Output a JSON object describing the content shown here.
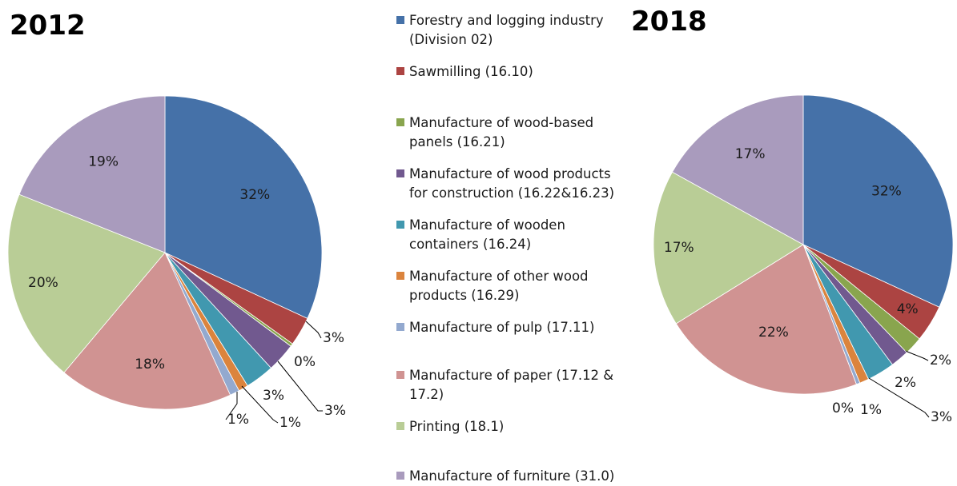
{
  "chart_data": [
    {
      "type": "pie",
      "title": "2012",
      "categories": [
        "Forestry and logging industry (Division 02)",
        "Sawmilling (16.10)",
        "Manufacture of wood-based panels (16.21)",
        "Manufacture of wood products for construction (16.22&16.23)",
        "Manufacture of wooden containers (16.24)",
        "Manufacture of other wood products (16.29)",
        "Manufacture of pulp (17.11)",
        "Manufacture of paper (17.12 & 17.2)",
        "Printing (18.1)",
        "Manufacture of furniture (31.0)"
      ],
      "values": [
        32,
        3,
        0.3,
        3,
        3,
        1,
        1,
        18,
        20,
        19
      ],
      "labels": [
        "32%",
        "3%",
        "0%",
        "3%",
        "3%",
        "1%",
        "1%",
        "18%",
        "20%",
        "19%"
      ]
    },
    {
      "type": "pie",
      "title": "2018",
      "categories": [
        "Forestry and logging industry (Division 02)",
        "Sawmilling (16.10)",
        "Manufacture of wood-based panels (16.21)",
        "Manufacture of wood products for construction (16.22&16.23)",
        "Manufacture of wooden containers (16.24)",
        "Manufacture of other wood products (16.29)",
        "Manufacture of pulp (17.11)",
        "Manufacture of paper (17.12 & 17.2)",
        "Printing (18.1)",
        "Manufacture of furniture (31.0)"
      ],
      "values": [
        32,
        4,
        2,
        2,
        3,
        1,
        0.4,
        22,
        17,
        17
      ],
      "labels": [
        "32%",
        "4%",
        "2%",
        "2%",
        "3%",
        "1%",
        "0%",
        "22%",
        "17%",
        "17%"
      ]
    }
  ],
  "colors": [
    "#4571a8",
    "#ac4442",
    "#89a54e",
    "#71598f",
    "#4198af",
    "#db843d",
    "#93a9cf",
    "#d09392",
    "#b9cd96",
    "#a99bbd"
  ],
  "legend": [
    "Forestry and logging industry (Division 02)",
    "Sawmilling (16.10)",
    "Manufacture of wood-based panels (16.21)",
    "Manufacture of wood products for construction (16.22&16.23)",
    "Manufacture of wooden containers (16.24)",
    "Manufacture of other wood products (16.29)",
    "Manufacture of pulp (17.11)",
    "Manufacture of paper (17.12 & 17.2)",
    "Printing (18.1)",
    "Manufacture of furniture (31.0)"
  ]
}
